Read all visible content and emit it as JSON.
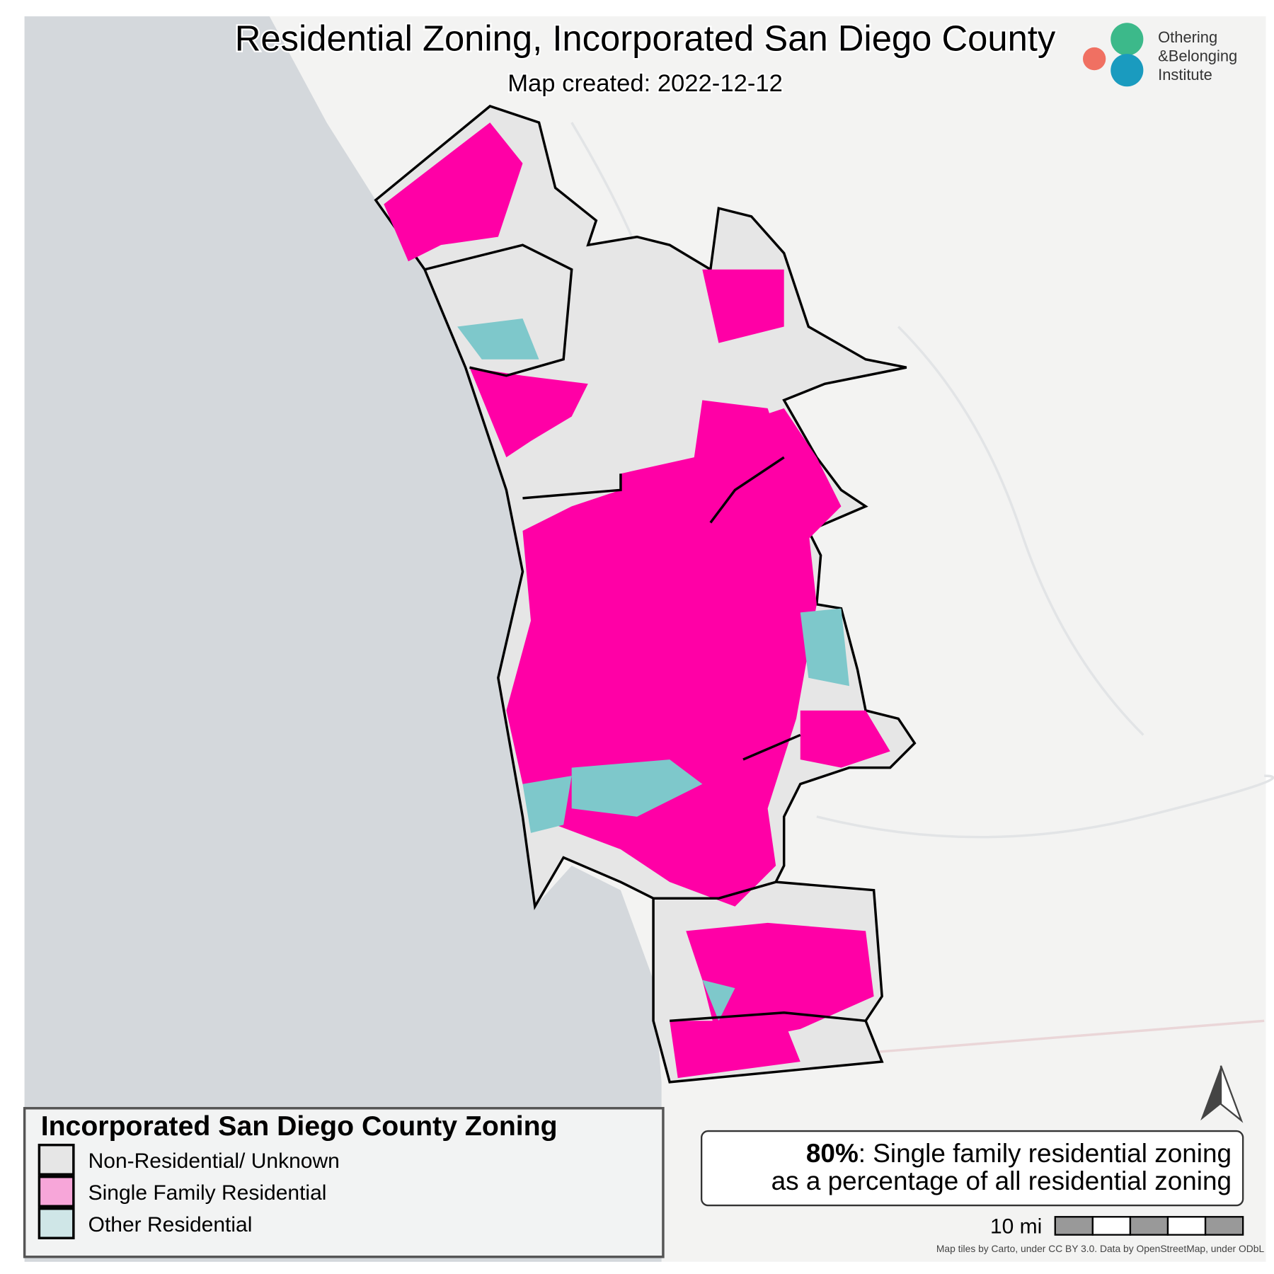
{
  "header": {
    "title": "Residential Zoning, Incorporated San Diego County",
    "subtitle": "Map created: 2022-12-12"
  },
  "logo": {
    "lines": [
      "Othering",
      "&Belonging",
      "Institute"
    ]
  },
  "legend": {
    "title": "Incorporated San Diego County Zoning",
    "items": [
      "Non-Residential/ Unknown",
      "Single Family Residential",
      "Other Residential"
    ]
  },
  "stat_box": {
    "percent": "80%",
    "line1": ": Single family residential zoning",
    "line2": "as a percentage of all residential zoning"
  },
  "scale_bar": {
    "label": "10 mi"
  },
  "attribution": "Map tiles by Carto, under CC BY 3.0. Data by OpenStreetMap, under ODbL"
}
